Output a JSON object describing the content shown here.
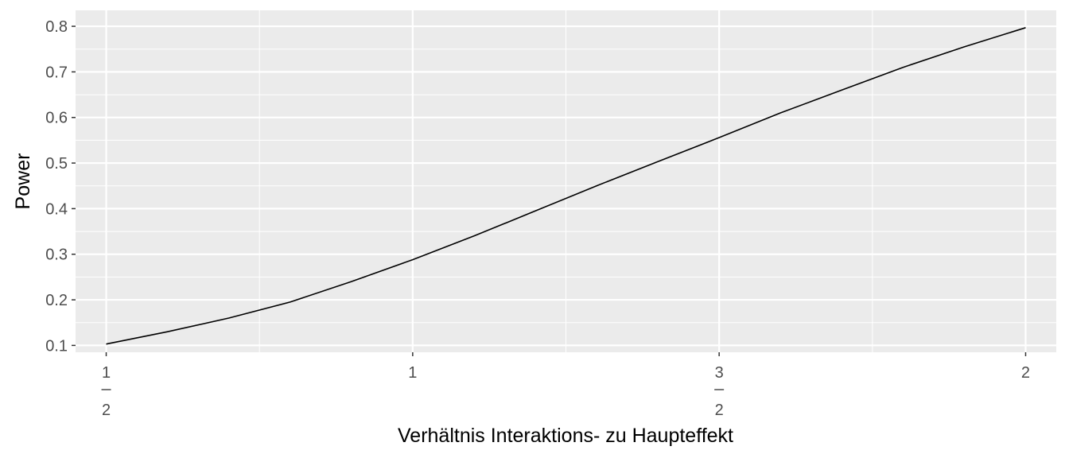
{
  "chart_data": {
    "type": "line",
    "xlabel": "Verhältnis Interaktions- zu Haupteffekt",
    "ylabel": "Power",
    "xlim": [
      0.45,
      2.05
    ],
    "ylim": [
      0.085,
      0.835
    ],
    "x_ticks": [
      {
        "value": 0.5,
        "numerator": "1",
        "denominator": "2"
      },
      {
        "value": 1,
        "label": "1"
      },
      {
        "value": 1.5,
        "numerator": "3",
        "denominator": "2"
      },
      {
        "value": 2,
        "label": "2"
      }
    ],
    "x_minor_ticks": [
      0.75,
      1.25,
      1.75
    ],
    "y_ticks": [
      0.1,
      0.2,
      0.3,
      0.4,
      0.5,
      0.6,
      0.7,
      0.8
    ],
    "y_tick_labels": [
      "0.1",
      "0.2",
      "0.3",
      "0.4",
      "0.5",
      "0.6",
      "0.7",
      "0.8"
    ],
    "grid": true,
    "series": [
      {
        "color": "#000000",
        "x": [
          0.5,
          0.6,
          0.7,
          0.8,
          0.9,
          1.0,
          1.1,
          1.2,
          1.3,
          1.4,
          1.5,
          1.6,
          1.7,
          1.8,
          1.9,
          2.0
        ],
        "y": [
          0.103,
          0.13,
          0.16,
          0.195,
          0.24,
          0.288,
          0.34,
          0.395,
          0.45,
          0.503,
          0.556,
          0.61,
          0.66,
          0.71,
          0.755,
          0.797
        ]
      }
    ]
  }
}
